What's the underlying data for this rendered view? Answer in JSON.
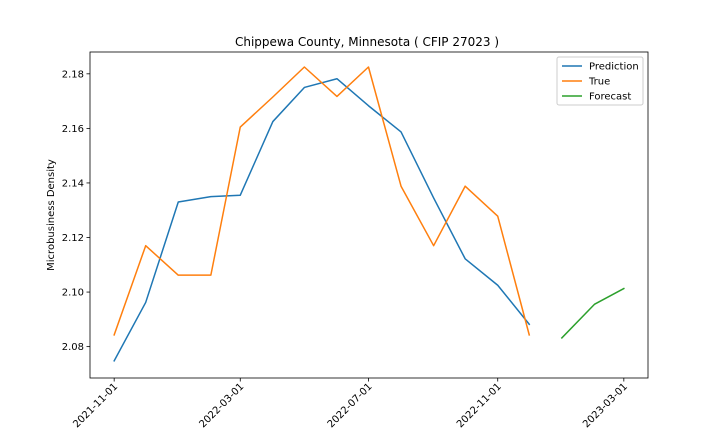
{
  "chart_data": {
    "type": "line",
    "title": "Chippewa County, Minnesota ( CFIP 27023 )",
    "xlabel": "",
    "ylabel": "Microbusiness Density",
    "x_range": [
      "2021-10-09",
      "2023-03-24"
    ],
    "ylim": [
      2.0685,
      2.188
    ],
    "grid": false,
    "legend_position": "top-right",
    "x_ticks": [
      "2021-11-01",
      "2022-03-01",
      "2022-07-01",
      "2022-11-01",
      "2023-03-01"
    ],
    "y_ticks": [
      2.08,
      2.1,
      2.12,
      2.14,
      2.16,
      2.18
    ],
    "y_tick_labels": [
      "2.08",
      "2.10",
      "2.12",
      "2.14",
      "2.16",
      "2.18"
    ],
    "series": [
      {
        "name": "Prediction",
        "color": "#1f77b4",
        "x": [
          "2021-11-01",
          "2021-12-01",
          "2022-01-01",
          "2022-02-01",
          "2022-03-01",
          "2022-04-01",
          "2022-05-01",
          "2022-06-01",
          "2022-07-01",
          "2022-08-01",
          "2022-09-01",
          "2022-10-01",
          "2022-11-01",
          "2022-12-01"
        ],
        "values": [
          2.0748,
          2.0962,
          2.133,
          2.135,
          2.1355,
          2.1625,
          2.175,
          2.1782,
          2.1683,
          2.1587,
          2.1345,
          2.1122,
          2.1025,
          2.0882
        ]
      },
      {
        "name": "True",
        "color": "#ff7f0e",
        "x": [
          "2021-11-01",
          "2021-12-01",
          "2022-01-01",
          "2022-02-01",
          "2022-03-01",
          "2022-04-01",
          "2022-05-01",
          "2022-06-01",
          "2022-07-01",
          "2022-08-01",
          "2022-09-01",
          "2022-10-01",
          "2022-11-01",
          "2022-12-01"
        ],
        "values": [
          2.0843,
          2.117,
          2.1062,
          2.1062,
          2.1605,
          2.1715,
          2.1825,
          2.1717,
          2.1825,
          2.1388,
          2.117,
          2.1388,
          2.1278,
          2.0843
        ]
      },
      {
        "name": "Forecast",
        "color": "#2ca02c",
        "x": [
          "2023-01-01",
          "2023-02-01",
          "2023-03-01"
        ],
        "values": [
          2.0832,
          2.0955,
          2.1013
        ]
      }
    ]
  }
}
